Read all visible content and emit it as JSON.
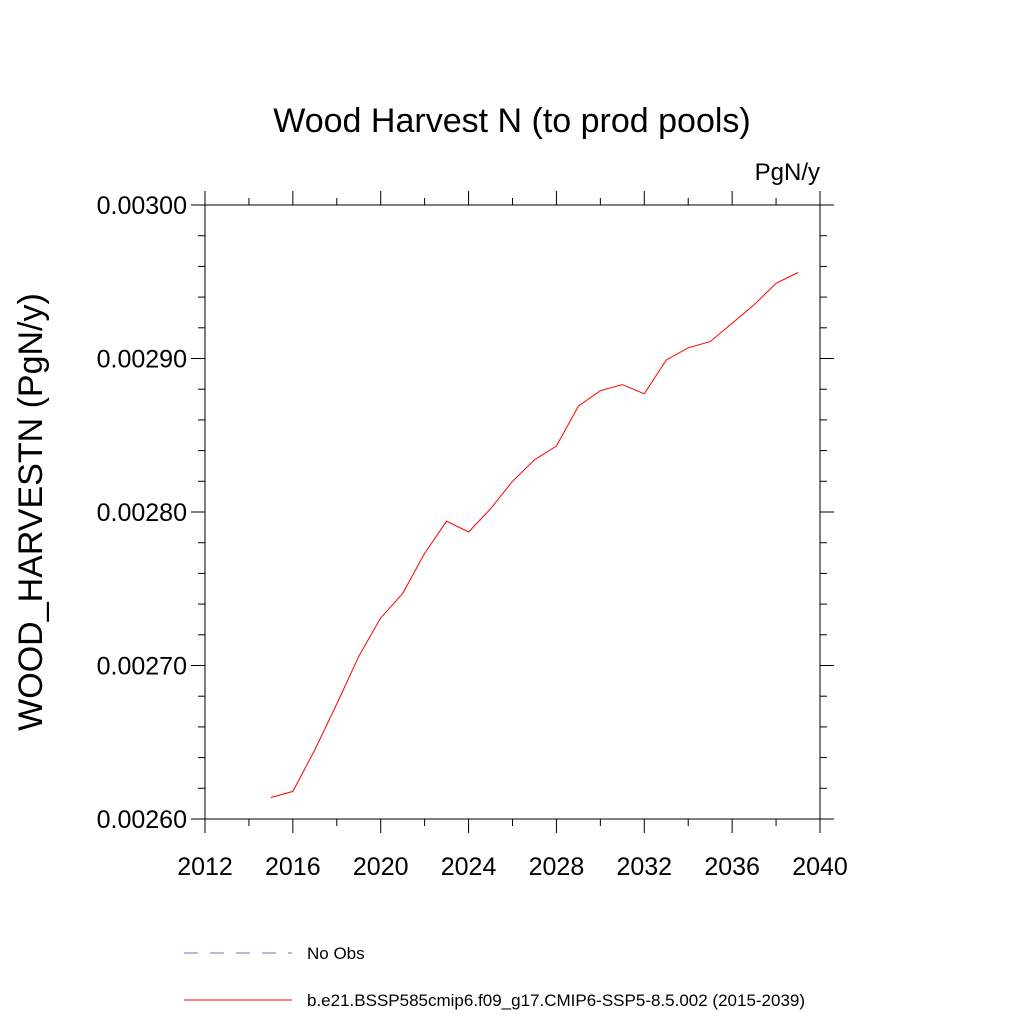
{
  "chart_data": {
    "type": "line",
    "title": "Wood Harvest N (to prod pools)",
    "units_label": "PgN/y",
    "ylabel": "WOOD_HARVESTN  (PgN/y)",
    "xlabel": "",
    "xlim": [
      2012,
      2040
    ],
    "ylim": [
      0.0026,
      0.003
    ],
    "x_ticks": [
      2012,
      2016,
      2020,
      2024,
      2028,
      2032,
      2036,
      2040
    ],
    "x_tick_labels": [
      "2012",
      "2016",
      "2020",
      "2024",
      "2028",
      "2032",
      "2036",
      "2040"
    ],
    "y_ticks": [
      0.0026,
      0.0027,
      0.0028,
      0.0029,
      0.003
    ],
    "y_tick_labels": [
      "0.00260",
      "0.00270",
      "0.00280",
      "0.00290",
      "0.00300"
    ],
    "grid": false,
    "legend_position": "bottom",
    "series": [
      {
        "name": "b.e21.BSSP585cmip6.f09_g17.CMIP6-SSP5-8.5.002 (2015-2039)",
        "color": "#ff0000",
        "style": "solid",
        "x": [
          2015,
          2016,
          2017,
          2018,
          2019,
          2020,
          2021,
          2022,
          2023,
          2024,
          2025,
          2026,
          2027,
          2028,
          2029,
          2030,
          2031,
          2032,
          2033,
          2034,
          2035,
          2036,
          2037,
          2038,
          2039
        ],
        "y": [
          0.002614,
          0.002618,
          0.002645,
          0.002675,
          0.002706,
          0.002731,
          0.002747,
          0.002773,
          0.002794,
          0.002787,
          0.002802,
          0.00282,
          0.002834,
          0.002843,
          0.002869,
          0.002879,
          0.002883,
          0.002877,
          0.002899,
          0.002907,
          0.002911,
          0.002923,
          0.002935,
          0.002949,
          0.002956
        ]
      }
    ],
    "legend": [
      {
        "label": "No Obs",
        "color": "#7b6fb5",
        "style": "dashed"
      },
      {
        "label": "b.e21.BSSP585cmip6.f09_g17.CMIP6-SSP5-8.5.002 (2015-2039)",
        "color": "#ff0000",
        "style": "solid"
      }
    ]
  }
}
